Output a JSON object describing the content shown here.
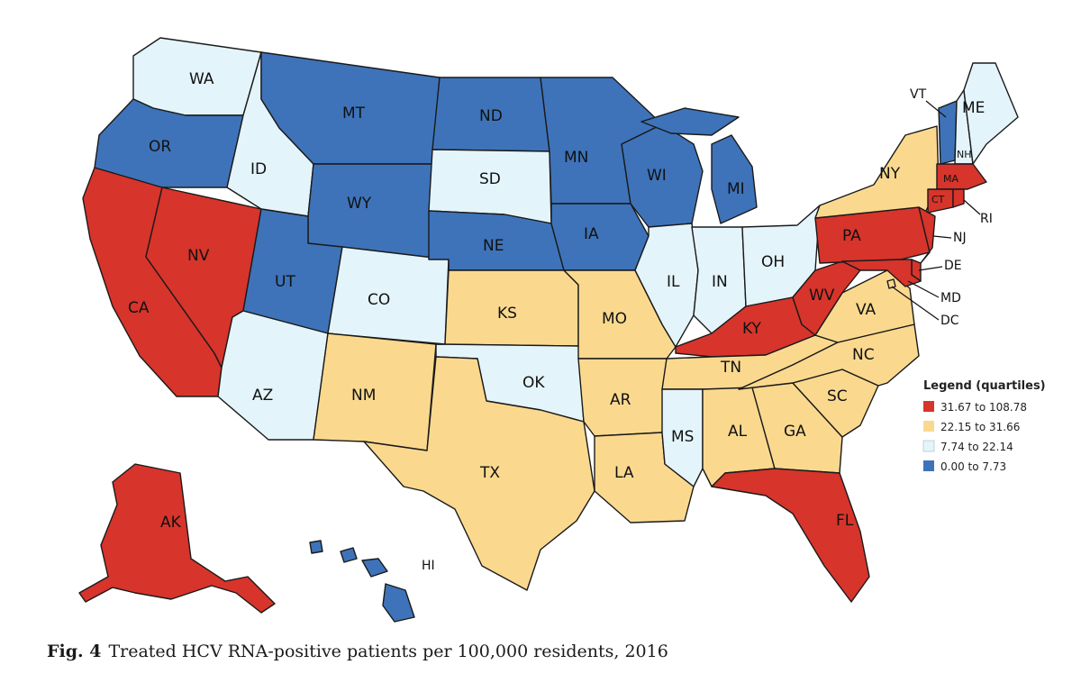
{
  "colors": {
    "q4": "#d7342b",
    "q3": "#fad98f",
    "q2": "#e4f4fb",
    "q1": "#3e73b9",
    "border": "#1a1a1a"
  },
  "legend": {
    "title": "Legend (quartiles)",
    "items": [
      {
        "key": "q4",
        "label": "31.67 to 108.78"
      },
      {
        "key": "q3",
        "label": "22.15 to 31.66"
      },
      {
        "key": "q2",
        "label": "7.74 to 22.14"
      },
      {
        "key": "q1",
        "label": "0.00 to 7.73"
      }
    ]
  },
  "states": {
    "WA": "q2",
    "OR": "q1",
    "CA": "q4",
    "NV": "q4",
    "ID": "q2",
    "MT": "q1",
    "WY": "q1",
    "UT": "q1",
    "CO": "q2",
    "AZ": "q2",
    "NM": "q3",
    "ND": "q1",
    "SD": "q2",
    "NE": "q1",
    "KS": "q3",
    "OK": "q2",
    "TX": "q3",
    "MN": "q1",
    "IA": "q1",
    "MO": "q3",
    "AR": "q3",
    "LA": "q3",
    "WI": "q1",
    "IL": "q2",
    "MI": "q1",
    "IN": "q2",
    "OH": "q2",
    "KY": "q4",
    "TN": "q3",
    "MS": "q2",
    "AL": "q3",
    "GA": "q3",
    "FL": "q4",
    "SC": "q3",
    "NC": "q3",
    "VA": "q3",
    "WV": "q4",
    "PA": "q4",
    "NY": "q3",
    "VT": "q1",
    "NH": "q2",
    "ME": "q2",
    "MA": "q4",
    "CT": "q4",
    "RI": "q4",
    "NJ": "q4",
    "DE": "q4",
    "MD": "q4",
    "DC": "q3",
    "AK": "q4",
    "HI": "q1"
  },
  "caption": {
    "fig": "Fig. 4",
    "text": "Treated HCV RNA-positive patients per 100,000 residents, 2016"
  }
}
